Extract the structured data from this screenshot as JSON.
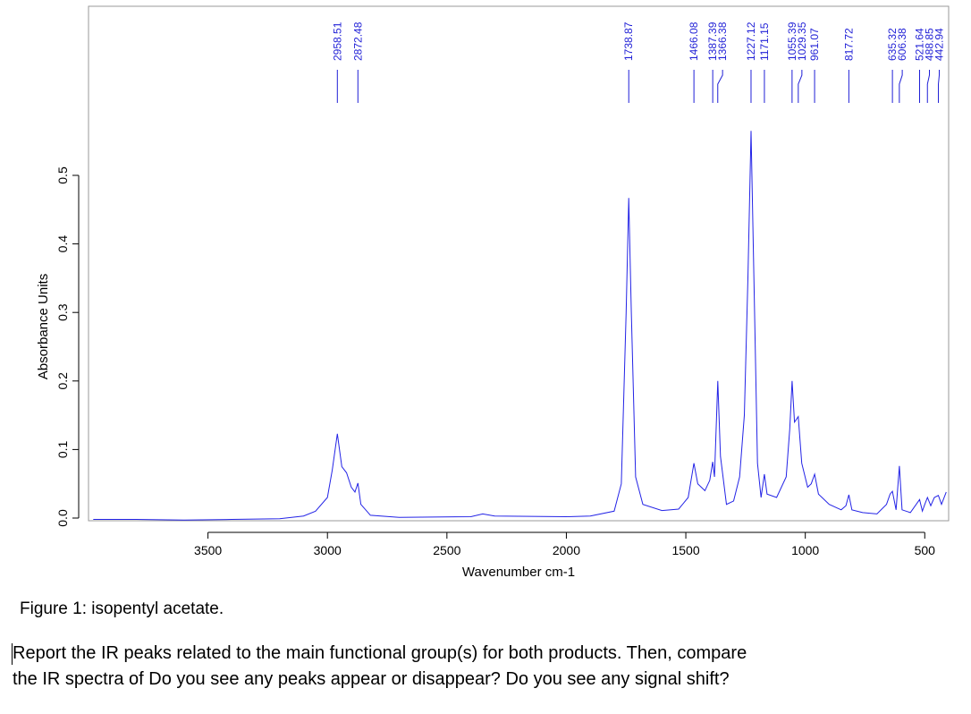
{
  "chart_data": {
    "type": "line",
    "title": "",
    "xlabel": "Wavenumber cm-1",
    "ylabel": "Absorbance Units",
    "xlim": [
      4000,
      400
    ],
    "ylim": [
      -0.005,
      0.57
    ],
    "x_reversed": true,
    "grid": false,
    "line_color": "#2323e6",
    "xticks": [
      3500,
      3000,
      2500,
      2000,
      1500,
      1000,
      500
    ],
    "xtick_labels": [
      "3500",
      "3000",
      "2500",
      "2000",
      "1500",
      "1000",
      "500"
    ],
    "yticks": [
      0.0,
      0.1,
      0.2,
      0.3,
      0.4,
      0.5
    ],
    "ytick_labels": [
      "0.0",
      "0.1",
      "0.2",
      "0.3",
      "0.4",
      "0.5"
    ],
    "peak_labels": [
      "2958.51",
      "2872.48",
      "1738.87",
      "1466.08",
      "1387.39",
      "1366.38",
      "1227.12",
      "1171.15",
      "1055.39",
      "1029.35",
      "961.07",
      "817.72",
      "635.32",
      "606.38",
      "521.64",
      "488.85",
      "442.94"
    ],
    "peaks": [
      {
        "x": 2958.51,
        "y": 0.123
      },
      {
        "x": 2872.48,
        "y": 0.051
      },
      {
        "x": 1738.87,
        "y": 0.467
      },
      {
        "x": 1466.08,
        "y": 0.08
      },
      {
        "x": 1387.39,
        "y": 0.082
      },
      {
        "x": 1366.38,
        "y": 0.2
      },
      {
        "x": 1227.12,
        "y": 0.565
      },
      {
        "x": 1171.15,
        "y": 0.064
      },
      {
        "x": 1055.39,
        "y": 0.2
      },
      {
        "x": 1029.35,
        "y": 0.148
      },
      {
        "x": 961.07,
        "y": 0.064
      },
      {
        "x": 817.72,
        "y": 0.034
      },
      {
        "x": 635.32,
        "y": 0.039
      },
      {
        "x": 606.38,
        "y": 0.076
      },
      {
        "x": 521.64,
        "y": 0.027
      },
      {
        "x": 488.85,
        "y": 0.03
      },
      {
        "x": 442.94,
        "y": 0.033
      }
    ],
    "spectrum": [
      [
        3980,
        -0.002
      ],
      [
        3800,
        -0.002
      ],
      [
        3600,
        -0.003
      ],
      [
        3400,
        -0.002
      ],
      [
        3200,
        -0.001
      ],
      [
        3100,
        0.003
      ],
      [
        3050,
        0.01
      ],
      [
        3000,
        0.03
      ],
      [
        2980,
        0.07
      ],
      [
        2958.51,
        0.123
      ],
      [
        2940,
        0.075
      ],
      [
        2920,
        0.066
      ],
      [
        2900,
        0.045
      ],
      [
        2885,
        0.038
      ],
      [
        2872.48,
        0.051
      ],
      [
        2860,
        0.02
      ],
      [
        2820,
        0.004
      ],
      [
        2700,
        0.001
      ],
      [
        2400,
        0.002
      ],
      [
        2350,
        0.006
      ],
      [
        2300,
        0.003
      ],
      [
        2000,
        0.002
      ],
      [
        1900,
        0.003
      ],
      [
        1800,
        0.01
      ],
      [
        1770,
        0.05
      ],
      [
        1750,
        0.3
      ],
      [
        1738.87,
        0.467
      ],
      [
        1728,
        0.3
      ],
      [
        1710,
        0.06
      ],
      [
        1680,
        0.02
      ],
      [
        1600,
        0.011
      ],
      [
        1530,
        0.013
      ],
      [
        1490,
        0.03
      ],
      [
        1466.08,
        0.08
      ],
      [
        1450,
        0.05
      ],
      [
        1420,
        0.04
      ],
      [
        1400,
        0.055
      ],
      [
        1387.39,
        0.082
      ],
      [
        1380,
        0.06
      ],
      [
        1366.38,
        0.2
      ],
      [
        1355,
        0.09
      ],
      [
        1330,
        0.02
      ],
      [
        1300,
        0.025
      ],
      [
        1275,
        0.06
      ],
      [
        1255,
        0.15
      ],
      [
        1240,
        0.35
      ],
      [
        1227.12,
        0.565
      ],
      [
        1215,
        0.35
      ],
      [
        1200,
        0.08
      ],
      [
        1185,
        0.03
      ],
      [
        1171.15,
        0.064
      ],
      [
        1160,
        0.035
      ],
      [
        1120,
        0.03
      ],
      [
        1080,
        0.06
      ],
      [
        1065,
        0.13
      ],
      [
        1055.39,
        0.2
      ],
      [
        1045,
        0.14
      ],
      [
        1029.35,
        0.148
      ],
      [
        1015,
        0.08
      ],
      [
        990,
        0.045
      ],
      [
        975,
        0.05
      ],
      [
        961.07,
        0.064
      ],
      [
        945,
        0.035
      ],
      [
        900,
        0.02
      ],
      [
        850,
        0.012
      ],
      [
        830,
        0.018
      ],
      [
        817.72,
        0.034
      ],
      [
        805,
        0.012
      ],
      [
        760,
        0.008
      ],
      [
        700,
        0.006
      ],
      [
        660,
        0.02
      ],
      [
        645,
        0.035
      ],
      [
        635.32,
        0.039
      ],
      [
        620,
        0.012
      ],
      [
        606.38,
        0.076
      ],
      [
        595,
        0.012
      ],
      [
        560,
        0.008
      ],
      [
        521.64,
        0.027
      ],
      [
        510,
        0.01
      ],
      [
        500,
        0.02
      ],
      [
        488.85,
        0.03
      ],
      [
        475,
        0.018
      ],
      [
        460,
        0.03
      ],
      [
        442.94,
        0.033
      ],
      [
        430,
        0.02
      ],
      [
        410,
        0.038
      ]
    ]
  },
  "caption": "Figure 1: isopentyl acetate.",
  "question": {
    "line1": "Report the IR peaks related to the main functional group(s) for both products. Then, compare",
    "line2": "the IR spectra of Do you see any peaks appear or disappear? Do you see any signal shift?"
  }
}
